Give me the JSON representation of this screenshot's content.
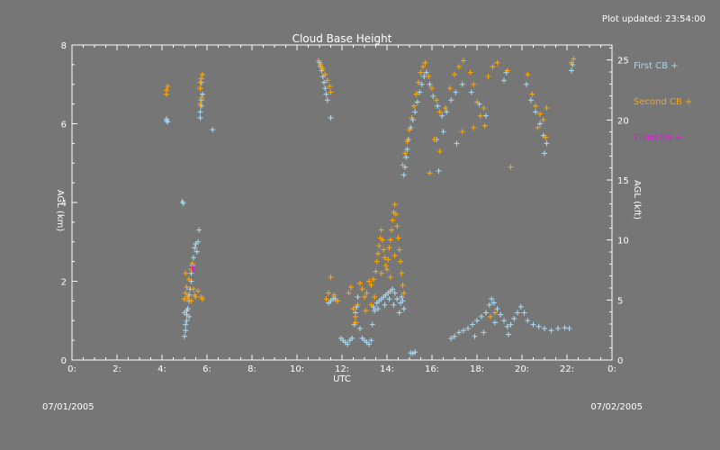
{
  "header": {
    "updated": "Plot updated: 23:54:00"
  },
  "footer": {
    "start_date": "07/01/2005",
    "end_date": "07/02/2005"
  },
  "chart_data": {
    "type": "scatter",
    "title": "Cloud Base Height",
    "xlabel": "UTC",
    "ylabel": "AGL (km)",
    "ylabel_right": "AGL (kft)",
    "xlim": [
      0,
      24
    ],
    "ylim": [
      0,
      8
    ],
    "ylim_right": [
      0,
      26.25
    ],
    "x_ticks": [
      {
        "value": 0,
        "label": "0:"
      },
      {
        "value": 2,
        "label": "2:"
      },
      {
        "value": 4,
        "label": "4:"
      },
      {
        "value": 6,
        "label": "6:"
      },
      {
        "value": 8,
        "label": "8:"
      },
      {
        "value": 10,
        "label": "10:"
      },
      {
        "value": 12,
        "label": "12:"
      },
      {
        "value": 14,
        "label": "14:"
      },
      {
        "value": 16,
        "label": "16:"
      },
      {
        "value": 18,
        "label": "18:"
      },
      {
        "value": 20,
        "label": "20:"
      },
      {
        "value": 22,
        "label": "22:"
      },
      {
        "value": 24,
        "label": "0:"
      }
    ],
    "y_ticks": [
      {
        "value": 0,
        "label": "0"
      },
      {
        "value": 2,
        "label": "2"
      },
      {
        "value": 4,
        "label": "4"
      },
      {
        "value": 6,
        "label": "6"
      },
      {
        "value": 8,
        "label": "8"
      }
    ],
    "y_ticks_right": [
      {
        "value": 0,
        "label": "0"
      },
      {
        "value": 5,
        "label": "5"
      },
      {
        "value": 10,
        "label": "10"
      },
      {
        "value": 15,
        "label": "15"
      },
      {
        "value": 20,
        "label": "20"
      },
      {
        "value": 25,
        "label": "25"
      }
    ],
    "grid": false,
    "legend_position": "right",
    "series": [
      {
        "name": "First CB +",
        "color": "#a8d8f0",
        "points": [
          [
            4.2,
            6.08
          ],
          [
            4.2,
            6.12
          ],
          [
            4.25,
            6.05
          ],
          [
            4.9,
            4.02
          ],
          [
            4.95,
            3.98
          ],
          [
            5.0,
            0.6
          ],
          [
            5.05,
            0.75
          ],
          [
            5.05,
            0.9
          ],
          [
            5.1,
            1.0
          ],
          [
            5.1,
            1.15
          ],
          [
            5.15,
            1.3
          ],
          [
            5.2,
            1.5
          ],
          [
            5.2,
            1.65
          ],
          [
            5.25,
            1.8
          ],
          [
            5.3,
            2.0
          ],
          [
            5.3,
            2.2
          ],
          [
            5.35,
            2.4
          ],
          [
            5.4,
            2.6
          ],
          [
            5.45,
            2.85
          ],
          [
            5.5,
            2.95
          ],
          [
            5.55,
            2.75
          ],
          [
            5.6,
            3.0
          ],
          [
            5.65,
            3.3
          ],
          [
            5.1,
            1.25
          ],
          [
            5.2,
            1.1
          ],
          [
            5.0,
            1.2
          ],
          [
            5.7,
            6.15
          ],
          [
            5.7,
            6.3
          ],
          [
            5.75,
            6.45
          ],
          [
            5.75,
            6.6
          ],
          [
            5.8,
            6.75
          ],
          [
            5.7,
            6.9
          ],
          [
            5.75,
            7.05
          ],
          [
            6.25,
            5.85
          ],
          [
            11.0,
            7.55
          ],
          [
            11.05,
            7.45
          ],
          [
            11.1,
            7.35
          ],
          [
            11.15,
            7.2
          ],
          [
            11.2,
            7.05
          ],
          [
            11.25,
            6.9
          ],
          [
            11.3,
            6.75
          ],
          [
            11.35,
            6.6
          ],
          [
            11.5,
            6.15
          ],
          [
            11.4,
            1.45
          ],
          [
            11.5,
            1.5
          ],
          [
            11.6,
            1.55
          ],
          [
            11.7,
            1.55
          ],
          [
            11.8,
            1.5
          ],
          [
            11.95,
            0.55
          ],
          [
            12.05,
            0.5
          ],
          [
            12.15,
            0.45
          ],
          [
            12.25,
            0.4
          ],
          [
            12.35,
            0.5
          ],
          [
            12.45,
            0.55
          ],
          [
            12.55,
            0.9
          ],
          [
            12.6,
            1.2
          ],
          [
            12.65,
            1.35
          ],
          [
            12.7,
            1.6
          ],
          [
            12.8,
            0.8
          ],
          [
            12.9,
            0.55
          ],
          [
            13.0,
            0.5
          ],
          [
            13.1,
            0.45
          ],
          [
            13.2,
            0.4
          ],
          [
            13.3,
            0.5
          ],
          [
            13.35,
            0.9
          ],
          [
            13.45,
            1.25
          ],
          [
            13.55,
            1.45
          ],
          [
            13.65,
            1.5
          ],
          [
            13.75,
            1.55
          ],
          [
            13.85,
            1.6
          ],
          [
            13.95,
            1.65
          ],
          [
            14.05,
            1.7
          ],
          [
            14.15,
            1.75
          ],
          [
            14.25,
            1.8
          ],
          [
            14.35,
            1.7
          ],
          [
            14.45,
            1.55
          ],
          [
            14.55,
            1.2
          ],
          [
            14.6,
            1.45
          ],
          [
            14.65,
            1.6
          ],
          [
            14.7,
            1.5
          ],
          [
            14.75,
            1.3
          ],
          [
            13.6,
            1.3
          ],
          [
            13.9,
            1.4
          ],
          [
            14.1,
            1.55
          ],
          [
            14.3,
            1.4
          ],
          [
            13.4,
            1.35
          ],
          [
            15.05,
            0.18
          ],
          [
            15.15,
            0.17
          ],
          [
            15.25,
            0.2
          ],
          [
            14.75,
            4.7
          ],
          [
            14.8,
            4.9
          ],
          [
            14.85,
            5.15
          ],
          [
            14.9,
            5.35
          ],
          [
            14.95,
            5.6
          ],
          [
            15.05,
            5.9
          ],
          [
            15.15,
            6.1
          ],
          [
            15.25,
            6.3
          ],
          [
            15.35,
            6.55
          ],
          [
            15.45,
            6.8
          ],
          [
            15.55,
            7.0
          ],
          [
            15.65,
            7.2
          ],
          [
            15.75,
            7.3
          ],
          [
            15.9,
            7.0
          ],
          [
            16.05,
            6.7
          ],
          [
            16.25,
            6.45
          ],
          [
            16.45,
            6.2
          ],
          [
            16.65,
            6.3
          ],
          [
            16.85,
            6.6
          ],
          [
            17.05,
            6.8
          ],
          [
            17.35,
            7.0
          ],
          [
            17.75,
            6.8
          ],
          [
            18.1,
            6.5
          ],
          [
            18.4,
            6.2
          ],
          [
            16.2,
            5.6
          ],
          [
            16.5,
            5.8
          ],
          [
            17.1,
            5.5
          ],
          [
            16.3,
            4.8
          ],
          [
            19.2,
            7.1
          ],
          [
            19.3,
            7.3
          ],
          [
            20.2,
            7.0
          ],
          [
            20.4,
            6.6
          ],
          [
            20.6,
            6.3
          ],
          [
            20.8,
            6.0
          ],
          [
            20.95,
            5.7
          ],
          [
            21.1,
            5.5
          ],
          [
            21.0,
            5.25
          ],
          [
            22.2,
            7.35
          ],
          [
            22.25,
            7.5
          ],
          [
            16.85,
            0.55
          ],
          [
            17.0,
            0.6
          ],
          [
            17.2,
            0.7
          ],
          [
            17.4,
            0.75
          ],
          [
            17.6,
            0.8
          ],
          [
            17.8,
            0.9
          ],
          [
            18.0,
            1.0
          ],
          [
            18.2,
            1.1
          ],
          [
            18.4,
            1.2
          ],
          [
            18.55,
            1.4
          ],
          [
            18.65,
            1.55
          ],
          [
            18.75,
            1.45
          ],
          [
            18.9,
            1.3
          ],
          [
            19.05,
            1.15
          ],
          [
            19.2,
            1.0
          ],
          [
            19.35,
            0.85
          ],
          [
            19.5,
            0.9
          ],
          [
            19.65,
            1.05
          ],
          [
            19.8,
            1.2
          ],
          [
            19.95,
            1.35
          ],
          [
            20.1,
            1.2
          ],
          [
            20.25,
            1.0
          ],
          [
            20.5,
            0.9
          ],
          [
            20.75,
            0.85
          ],
          [
            21.0,
            0.8
          ],
          [
            21.3,
            0.75
          ],
          [
            21.6,
            0.8
          ],
          [
            21.9,
            0.82
          ],
          [
            22.1,
            0.8
          ],
          [
            17.9,
            0.6
          ],
          [
            18.3,
            0.7
          ],
          [
            18.8,
            0.95
          ],
          [
            19.4,
            0.65
          ]
        ]
      },
      {
        "name": "Second CB +",
        "color": "#ffa500",
        "points": [
          [
            4.2,
            6.85
          ],
          [
            4.2,
            6.75
          ],
          [
            4.25,
            6.95
          ],
          [
            5.0,
            1.55
          ],
          [
            5.05,
            1.7
          ],
          [
            5.1,
            1.85
          ],
          [
            5.15,
            1.6
          ],
          [
            5.2,
            2.05
          ],
          [
            5.3,
            2.3
          ],
          [
            5.35,
            2.45
          ],
          [
            5.4,
            1.8
          ],
          [
            5.45,
            1.65
          ],
          [
            5.5,
            1.6
          ],
          [
            5.6,
            1.75
          ],
          [
            5.75,
            1.6
          ],
          [
            5.8,
            1.55
          ],
          [
            5.05,
            2.2
          ],
          [
            5.3,
            1.5
          ],
          [
            5.7,
            6.9
          ],
          [
            5.7,
            7.05
          ],
          [
            5.75,
            7.15
          ],
          [
            5.8,
            7.25
          ],
          [
            5.7,
            6.5
          ],
          [
            5.75,
            6.65
          ],
          [
            10.95,
            7.6
          ],
          [
            11.05,
            7.5
          ],
          [
            11.15,
            7.4
          ],
          [
            11.25,
            7.25
          ],
          [
            11.35,
            7.1
          ],
          [
            11.45,
            6.95
          ],
          [
            11.5,
            6.8
          ],
          [
            11.3,
            1.55
          ],
          [
            11.4,
            1.7
          ],
          [
            11.5,
            2.1
          ],
          [
            11.65,
            1.65
          ],
          [
            11.8,
            1.5
          ],
          [
            12.3,
            1.7
          ],
          [
            12.4,
            1.85
          ],
          [
            12.5,
            1.3
          ],
          [
            12.6,
            1.1
          ],
          [
            12.7,
            1.4
          ],
          [
            12.8,
            1.95
          ],
          [
            12.9,
            1.8
          ],
          [
            13.0,
            1.6
          ],
          [
            13.1,
            1.7
          ],
          [
            13.2,
            2.0
          ],
          [
            13.3,
            1.9
          ],
          [
            13.4,
            2.05
          ],
          [
            13.5,
            2.25
          ],
          [
            13.55,
            2.5
          ],
          [
            13.6,
            2.7
          ],
          [
            13.65,
            2.9
          ],
          [
            13.7,
            3.1
          ],
          [
            13.75,
            3.3
          ],
          [
            13.8,
            3.05
          ],
          [
            13.85,
            2.8
          ],
          [
            13.9,
            2.6
          ],
          [
            13.95,
            2.4
          ],
          [
            14.0,
            2.3
          ],
          [
            14.05,
            2.55
          ],
          [
            14.1,
            2.85
          ],
          [
            14.15,
            3.05
          ],
          [
            14.2,
            3.3
          ],
          [
            14.25,
            3.55
          ],
          [
            14.3,
            3.75
          ],
          [
            14.35,
            3.95
          ],
          [
            14.4,
            3.7
          ],
          [
            14.45,
            3.4
          ],
          [
            14.5,
            3.1
          ],
          [
            14.55,
            2.8
          ],
          [
            14.6,
            2.5
          ],
          [
            14.65,
            2.2
          ],
          [
            14.7,
            1.9
          ],
          [
            14.75,
            1.7
          ],
          [
            13.3,
            1.4
          ],
          [
            13.45,
            1.6
          ],
          [
            13.75,
            2.2
          ],
          [
            14.15,
            2.1
          ],
          [
            14.35,
            2.65
          ],
          [
            12.6,
            0.95
          ],
          [
            13.05,
            1.25
          ],
          [
            14.7,
            4.95
          ],
          [
            14.8,
            5.25
          ],
          [
            14.9,
            5.55
          ],
          [
            15.0,
            5.85
          ],
          [
            15.1,
            6.15
          ],
          [
            15.2,
            6.45
          ],
          [
            15.3,
            6.75
          ],
          [
            15.4,
            7.05
          ],
          [
            15.5,
            7.3
          ],
          [
            15.6,
            7.45
          ],
          [
            15.7,
            7.55
          ],
          [
            15.85,
            7.2
          ],
          [
            16.0,
            6.9
          ],
          [
            16.2,
            6.6
          ],
          [
            16.35,
            6.3
          ],
          [
            16.6,
            6.4
          ],
          [
            16.8,
            6.9
          ],
          [
            17.0,
            7.25
          ],
          [
            17.2,
            7.45
          ],
          [
            17.4,
            7.6
          ],
          [
            17.7,
            7.3
          ],
          [
            17.85,
            7.0
          ],
          [
            18.0,
            6.55
          ],
          [
            18.15,
            6.2
          ],
          [
            18.3,
            6.4
          ],
          [
            18.5,
            7.2
          ],
          [
            18.7,
            7.45
          ],
          [
            18.9,
            7.55
          ],
          [
            16.1,
            5.6
          ],
          [
            16.35,
            5.3
          ],
          [
            17.35,
            5.8
          ],
          [
            17.85,
            5.9
          ],
          [
            18.35,
            5.95
          ],
          [
            15.9,
            4.75
          ],
          [
            19.35,
            7.35
          ],
          [
            19.5,
            4.9
          ],
          [
            20.25,
            7.25
          ],
          [
            20.45,
            6.75
          ],
          [
            20.6,
            6.45
          ],
          [
            20.7,
            5.9
          ],
          [
            20.8,
            6.25
          ],
          [
            20.95,
            6.1
          ],
          [
            21.05,
            5.65
          ],
          [
            21.1,
            6.4
          ],
          [
            22.2,
            7.55
          ],
          [
            22.3,
            7.65
          ],
          [
            18.6,
            1.1
          ],
          [
            18.8,
            1.2
          ]
        ]
      },
      {
        "name": "Third CB +",
        "color": "#ff00ff",
        "points": [
          [
            5.35,
            2.35
          ],
          [
            5.4,
            2.3
          ]
        ]
      }
    ]
  }
}
